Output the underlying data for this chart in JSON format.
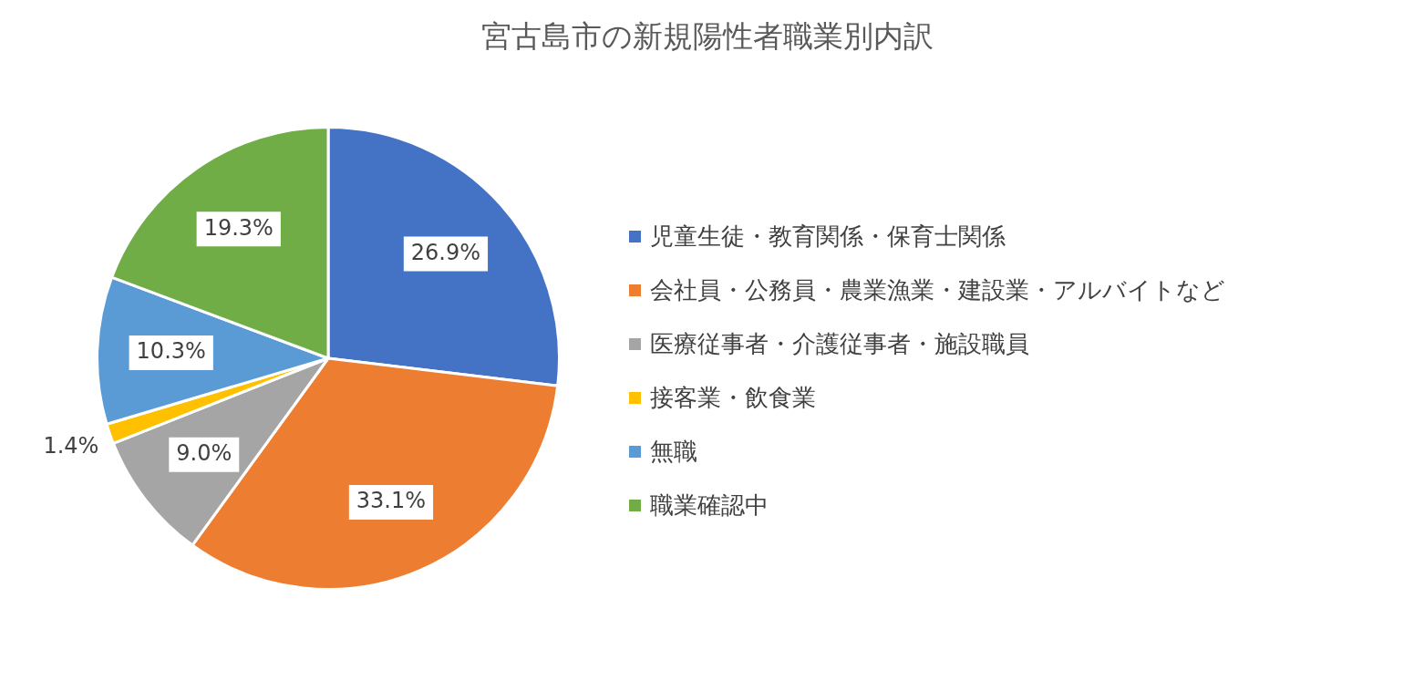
{
  "chart_data": {
    "type": "pie",
    "title": "宮古島市の新規陽性者職業別内訳",
    "categories": [
      "児童生徒・教育関係・保育士関係",
      "会社員・公務員・農業漁業・建設業・アルバイトなど",
      "医療従事者・介護従事者・施設職員",
      "接客業・飲食業",
      "無職",
      "職業確認中"
    ],
    "values": [
      26.9,
      33.1,
      9.0,
      1.4,
      10.3,
      19.3
    ],
    "colors": [
      "#4472c4",
      "#ed7d31",
      "#a5a5a5",
      "#ffc000",
      "#5b9bd5",
      "#70ad47"
    ],
    "value_labels": [
      "26.9%",
      "33.1%",
      "9.0%",
      "1.4%",
      "10.3%",
      "19.3%"
    ],
    "legend": "right"
  }
}
